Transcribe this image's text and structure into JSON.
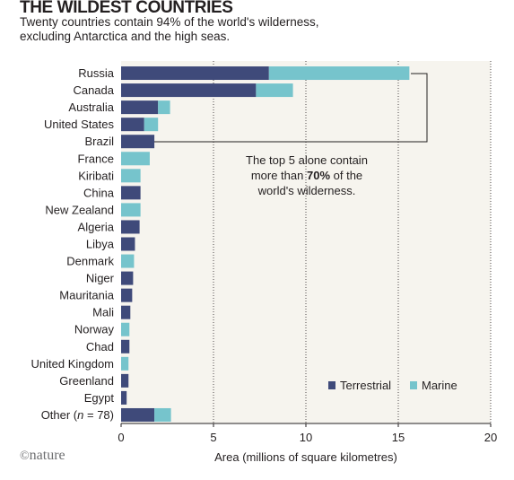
{
  "header": {
    "title": "THE WILDEST COUNTRIES",
    "subtitle_line1": "Twenty countries contain 94% of the world's wilderness,",
    "subtitle_line2": "excluding Antarctica and the high seas."
  },
  "credit": {
    "symbol": "©",
    "text": "nature"
  },
  "chart_data": {
    "type": "bar",
    "orientation": "horizontal",
    "stacked": true,
    "categories": [
      "Russia",
      "Canada",
      "Australia",
      "United States",
      "Brazil",
      "France",
      "Kiribati",
      "China",
      "New Zealand",
      "Algeria",
      "Libya",
      "Denmark",
      "Niger",
      "Mauritania",
      "Mali",
      "Norway",
      "Chad",
      "United Kingdom",
      "Greenland",
      "Egypt",
      "Other (n = 78)"
    ],
    "series": [
      {
        "name": "Terrestrial",
        "color": "#3f4a7a",
        "values": [
          8.0,
          7.3,
          2.0,
          1.25,
          1.8,
          0.0,
          0.0,
          1.05,
          0.0,
          1.0,
          0.75,
          0.0,
          0.65,
          0.6,
          0.5,
          0.0,
          0.45,
          0.0,
          0.4,
          0.3,
          1.8
        ]
      },
      {
        "name": "Marine",
        "color": "#76c4cc",
        "values": [
          7.6,
          2.0,
          0.65,
          0.75,
          0.0,
          1.55,
          1.05,
          0.0,
          1.05,
          0.0,
          0.0,
          0.7,
          0.0,
          0.0,
          0.0,
          0.45,
          0.0,
          0.4,
          0.0,
          0.0,
          0.9
        ]
      }
    ],
    "xlabel": "Area (millions of square kilometres)",
    "xlim": [
      0,
      20
    ],
    "xticks": [
      "0",
      "5",
      "10",
      "15",
      "20"
    ],
    "grid": "vertical dotted",
    "legend": "bottom-right",
    "annotation": {
      "line1": "The top 5 alone contain",
      "line2_pre": "more than ",
      "line2_bold": "70%",
      "line2_post": " of the",
      "line3": "world's wilderness."
    },
    "plot_background": "#f6f4ee"
  }
}
